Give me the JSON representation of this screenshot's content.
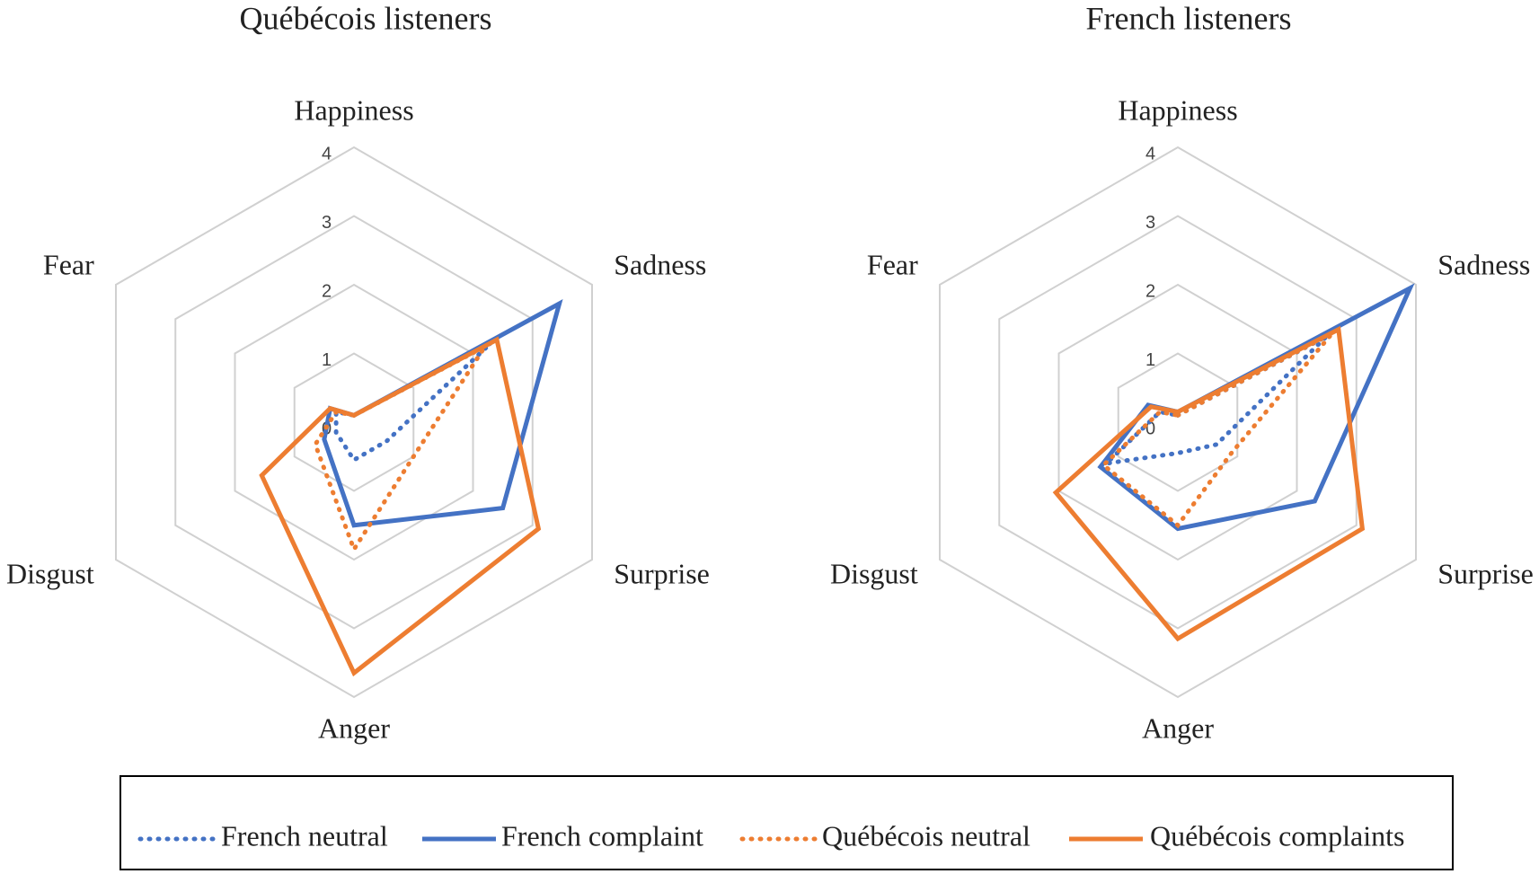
{
  "chart_data": [
    {
      "type": "radar",
      "title": "Québécois listeners",
      "categories": [
        "Happiness",
        "Sadness",
        "Surprise",
        "Anger",
        "Disgust",
        "Fear"
      ],
      "ylim": [
        0,
        4
      ],
      "yticks": [
        0,
        1,
        2,
        3,
        4
      ],
      "grid": true,
      "series": [
        {
          "name": "French neutral",
          "color": "#4472c4",
          "dash": "dotted",
          "values": [
            0.1,
            2.3,
            0.55,
            0.55,
            0.3,
            0.3
          ]
        },
        {
          "name": "French complaint",
          "color": "#4472c4",
          "dash": "solid",
          "values": [
            0.1,
            3.45,
            2.5,
            1.5,
            0.5,
            0.4
          ]
        },
        {
          "name": "Québécois neutral",
          "color": "#ed7d31",
          "dash": "dotted",
          "values": [
            0.1,
            2.2,
            1.0,
            1.85,
            0.65,
            0.3
          ]
        },
        {
          "name": "Québécois complaints",
          "color": "#ed7d31",
          "dash": "solid",
          "values": [
            0.1,
            2.4,
            3.1,
            3.65,
            1.55,
            0.4
          ]
        }
      ]
    },
    {
      "type": "radar",
      "title": "French listeners",
      "categories": [
        "Happiness",
        "Sadness",
        "Surprise",
        "Anger",
        "Disgust",
        "Fear"
      ],
      "ylim": [
        0,
        4
      ],
      "yticks": [
        0,
        1,
        2,
        3,
        4
      ],
      "grid": true,
      "series": [
        {
          "color": "#4472c4",
          "dash": "dotted",
          "values": [
            0.1,
            2.5,
            0.65,
            0.45,
            1.2,
            0.3
          ]
        },
        {
          "color": "#4472c4",
          "dash": "solid",
          "values": [
            0.15,
            3.9,
            2.3,
            1.55,
            1.3,
            0.5
          ]
        },
        {
          "color": "#ed7d31",
          "dash": "dotted",
          "values": [
            0.1,
            2.6,
            0.9,
            1.5,
            1.25,
            0.3
          ]
        },
        {
          "color": "#ed7d31",
          "dash": "solid",
          "values": [
            0.15,
            2.7,
            3.1,
            3.15,
            2.05,
            0.45
          ]
        }
      ]
    }
  ]
}
